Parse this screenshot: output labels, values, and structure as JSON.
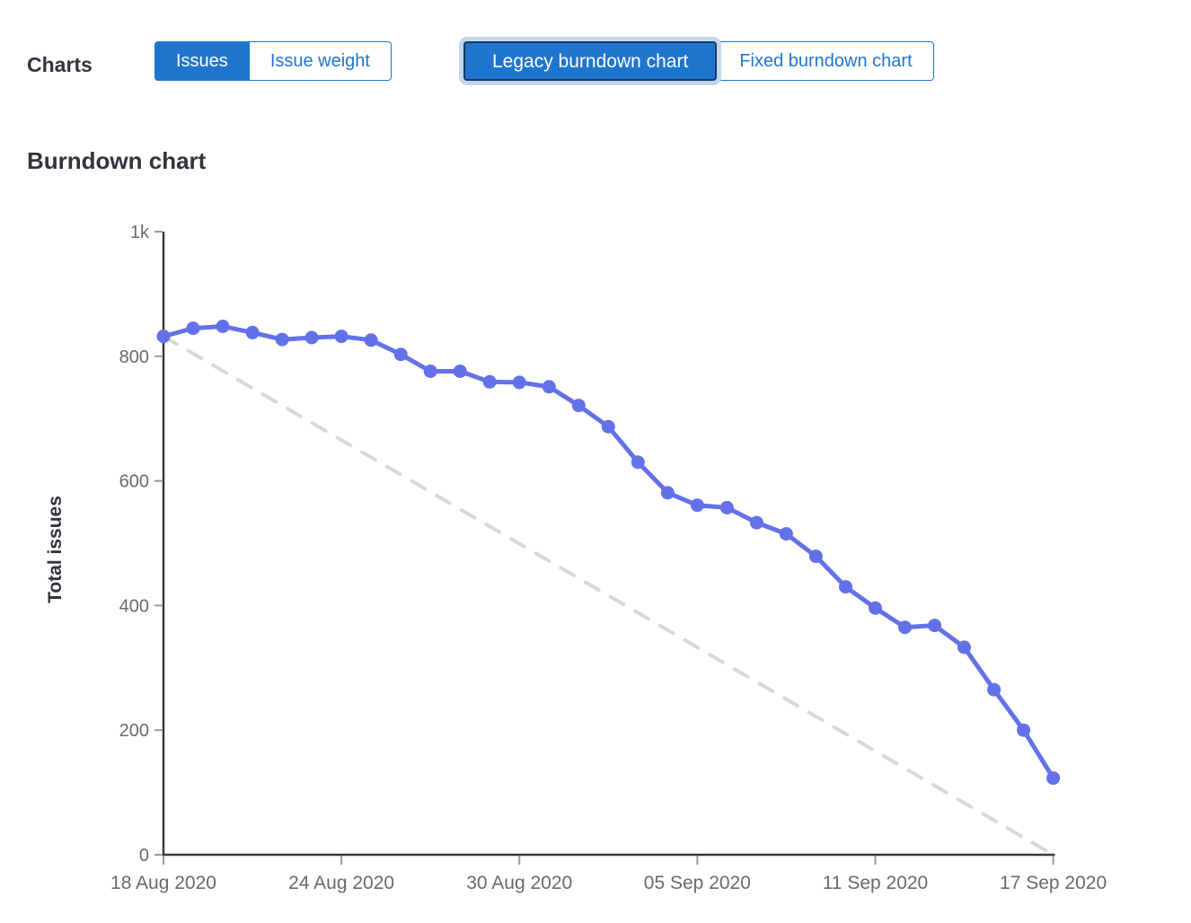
{
  "header": {
    "charts_label": "Charts",
    "metric_toggle": {
      "options": [
        {
          "label": "Issues",
          "selected": true
        },
        {
          "label": "Issue weight",
          "selected": false
        }
      ]
    },
    "chart_type_toggle": {
      "options": [
        {
          "label": "Legacy burndown chart",
          "selected": true,
          "focused": true
        },
        {
          "label": "Fixed burndown chart",
          "selected": false
        }
      ]
    }
  },
  "section": {
    "title": "Burndown chart"
  },
  "colors": {
    "button_blue": "#1f75cb",
    "focus_ring_outer": "#c2d7ee",
    "focus_ring_inner": "#123a62",
    "line_blue": "#6371e9",
    "guideline_gray": "#d8d8d8",
    "axis": "#3a3a3a",
    "tick_mark": "#999999",
    "tick_text": "#696969",
    "heading_text": "#30353c"
  },
  "chart_data": {
    "type": "line",
    "title": "Burndown chart",
    "xlabel": "",
    "ylabel": "Total issues",
    "ylim": [
      0,
      1000
    ],
    "grid": false,
    "legend": "none",
    "y_ticks": [
      {
        "value": 0,
        "label": "0"
      },
      {
        "value": 200,
        "label": "200"
      },
      {
        "value": 400,
        "label": "400"
      },
      {
        "value": 600,
        "label": "600"
      },
      {
        "value": 800,
        "label": "800"
      },
      {
        "value": 1000,
        "label": "1k"
      }
    ],
    "x_tick_days": [
      0,
      6,
      12,
      18,
      24,
      30
    ],
    "x_tick_labels": [
      "18 Aug 2020",
      "24 Aug 2020",
      "30 Aug 2020",
      "05 Sep 2020",
      "11 Sep 2020",
      "17 Sep 2020"
    ],
    "dates": [
      "2020-08-18",
      "2020-08-19",
      "2020-08-20",
      "2020-08-21",
      "2020-08-22",
      "2020-08-23",
      "2020-08-24",
      "2020-08-25",
      "2020-08-26",
      "2020-08-27",
      "2020-08-28",
      "2020-08-29",
      "2020-08-30",
      "2020-08-31",
      "2020-09-01",
      "2020-09-02",
      "2020-09-03",
      "2020-09-04",
      "2020-09-05",
      "2020-09-06",
      "2020-09-07",
      "2020-09-08",
      "2020-09-09",
      "2020-09-10",
      "2020-09-11",
      "2020-09-12",
      "2020-09-13",
      "2020-09-14",
      "2020-09-15",
      "2020-09-16",
      "2020-09-17"
    ],
    "series": [
      {
        "name": "total-issues",
        "style": "solid-line-with-markers",
        "values": [
          832,
          845,
          848,
          838,
          827,
          830,
          832,
          826,
          803,
          776,
          776,
          759,
          758,
          751,
          721,
          687,
          630,
          581,
          561,
          557,
          533,
          515,
          479,
          430,
          396,
          365,
          368,
          333,
          265,
          200,
          123
        ]
      },
      {
        "name": "ideal-guideline",
        "style": "dashed-line",
        "points": [
          {
            "day": 0,
            "value": 832
          },
          {
            "day": 30,
            "value": 0
          }
        ]
      }
    ]
  }
}
